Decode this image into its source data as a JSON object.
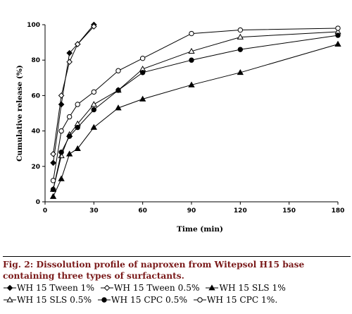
{
  "figure": {
    "caption": "Fig. 2: Dissolution profile of naproxen from Witepsol H15 base containing three types of surfactants."
  },
  "chart_data": {
    "type": "line",
    "xlabel": "Time (min)",
    "ylabel": "Cumulative release (%)",
    "xlim": [
      0,
      180
    ],
    "ylim": [
      0,
      100
    ],
    "xticks": [
      0,
      30,
      60,
      90,
      120,
      150,
      180
    ],
    "yticks": [
      0,
      20,
      40,
      60,
      80,
      100
    ],
    "grid": false,
    "legend_placement": "bottom",
    "series": [
      {
        "name": "WH 15 Tween 1%",
        "marker": "diamond-filled",
        "x": [
          5,
          10,
          15,
          20,
          30
        ],
        "y": [
          22,
          55,
          84,
          89,
          100
        ]
      },
      {
        "name": "WH 15 Tween 0.5%",
        "marker": "diamond-open",
        "x": [
          5,
          10,
          15,
          20,
          30
        ],
        "y": [
          27,
          60,
          79,
          89,
          99
        ]
      },
      {
        "name": "WH 15 SLS 1%",
        "marker": "triangle-filled",
        "x": [
          5,
          10,
          15,
          20,
          30,
          45,
          60,
          90,
          120,
          180
        ],
        "y": [
          3,
          13,
          27,
          30,
          42,
          53,
          58,
          66,
          73,
          89
        ]
      },
      {
        "name": "WH 15 SLS 0.5%",
        "marker": "triangle-open",
        "x": [
          5,
          10,
          15,
          20,
          30,
          45,
          60,
          90,
          120,
          180
        ],
        "y": [
          7,
          26,
          38,
          44,
          55,
          63,
          75,
          85,
          93,
          96
        ]
      },
      {
        "name": "WH 15 CPC 0.5%",
        "marker": "circle-filled",
        "x": [
          5,
          10,
          15,
          20,
          30,
          45,
          60,
          90,
          120,
          180
        ],
        "y": [
          7,
          28,
          37,
          42,
          52,
          63,
          73,
          80,
          86,
          94
        ]
      },
      {
        "name": "WH 15 CPC 1%",
        "marker": "circle-open",
        "x": [
          5,
          10,
          15,
          20,
          30,
          45,
          60,
          90,
          120,
          180
        ],
        "y": [
          12,
          40,
          48,
          55,
          62,
          74,
          81,
          95,
          97,
          98
        ]
      }
    ]
  },
  "legend": {
    "rows": [
      [
        {
          "marker": "diamond-filled",
          "label": "WH 15 Tween 1%"
        },
        {
          "marker": "diamond-open",
          "label": "WH 15 Tween 0.5%"
        },
        {
          "marker": "triangle-filled",
          "label": "WH 15 SLS 1%"
        }
      ],
      [
        {
          "marker": "triangle-open",
          "label": "WH 15 SLS 0.5%"
        },
        {
          "marker": "circle-filled",
          "label": "WH 15 CPC 0.5%"
        },
        {
          "marker": "circle-open",
          "label": "WH 15 CPC 1%."
        }
      ]
    ]
  }
}
